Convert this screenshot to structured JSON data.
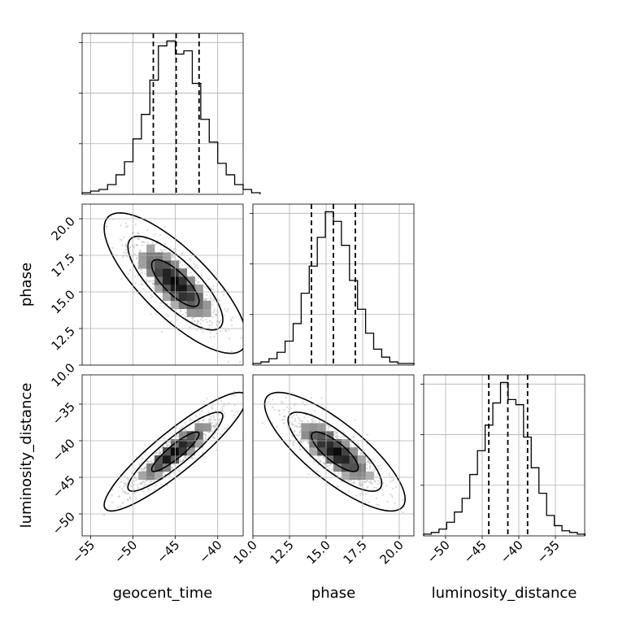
{
  "chart_data": {
    "type": "corner",
    "grid": true,
    "parameters": [
      {
        "name": "geocent_time",
        "label": "geocent_time",
        "range": [
          -56,
          -37
        ],
        "ticks": [
          -55,
          -50,
          -45,
          -40
        ],
        "tick_labels": [
          "−55",
          "−50",
          "−45",
          "−40"
        ],
        "mean": -45,
        "sigma": 2.8,
        "quantiles": [
          -47.6,
          -44.9,
          -42.2
        ],
        "hist": {
          "edges_start": -56,
          "bin_width": 1,
          "counts": [
            1,
            2,
            3,
            6,
            12,
            20,
            34,
            49,
            70,
            91,
            94,
            86,
            88,
            68,
            46,
            32,
            19,
            12,
            6,
            3,
            1
          ]
        }
      },
      {
        "name": "phase",
        "label": "phase",
        "range": [
          10,
          21
        ],
        "ticks": [
          10.0,
          12.5,
          15.0,
          17.5,
          20.0
        ],
        "tick_labels": [
          "10.0",
          "12.5",
          "15.0",
          "17.5",
          "20.0"
        ],
        "mean": 15.6,
        "sigma": 1.6,
        "quantiles": [
          14.0,
          15.5,
          17.0
        ],
        "hist": {
          "edges_start": 10,
          "bin_width": 0.55,
          "counts": [
            1,
            2,
            4,
            8,
            15,
            26,
            45,
            62,
            80,
            96,
            90,
            75,
            53,
            35,
            20,
            10,
            5,
            2,
            1,
            1
          ]
        }
      },
      {
        "name": "luminosity_distance",
        "label": "luminosity_distance",
        "range": [
          -53,
          -31
        ],
        "ticks": [
          -50,
          -45,
          -40,
          -35
        ],
        "tick_labels": [
          "−50",
          "−45",
          "−40",
          "−35"
        ],
        "mean": -41.5,
        "sigma": 2.7,
        "quantiles": [
          -44.1,
          -41.5,
          -38.8
        ],
        "hist": {
          "edges_start": -53,
          "bin_width": 1.05,
          "counts": [
            1,
            2,
            4,
            8,
            14,
            22,
            36,
            50,
            65,
            78,
            90,
            80,
            77,
            58,
            40,
            25,
            12,
            6,
            3,
            2,
            1
          ]
        }
      }
    ],
    "correlations": {
      "0_1": -0.78,
      "0_2": 0.9,
      "1_2": -0.8
    },
    "scatter_color": "#b8b8b8",
    "contour_levels_sigma": [
      1,
      2,
      3
    ]
  }
}
